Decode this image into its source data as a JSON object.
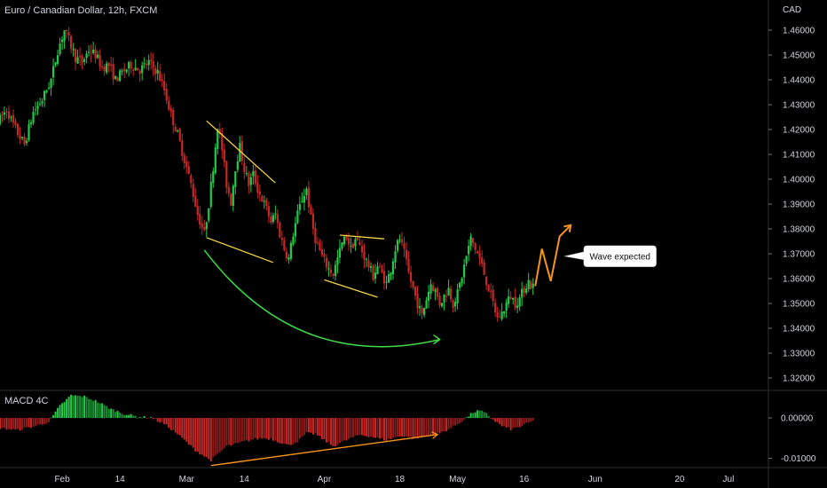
{
  "colors": {
    "background": "#000000",
    "up": "#26a69a",
    "up_bright": "#22c94a",
    "down": "#c62828",
    "pattern_line": "#f5d442",
    "arc_line": "#3ddc45",
    "forecast": "#f7931a",
    "text": "#d1d4dc",
    "grid": "#2a2a2a"
  },
  "chart_data": [
    {
      "type": "candlestick",
      "title": "Euro / Canadian Dollar, 12h, FXCM",
      "ylabel": "CAD",
      "ylim": [
        1.315,
        1.465
      ],
      "y_ticks": [
        "1.46000",
        "1.45000",
        "1.44000",
        "1.43000",
        "1.42000",
        "1.41000",
        "1.40000",
        "1.39000",
        "1.38000",
        "1.37000",
        "1.36000",
        "1.35000",
        "1.34000",
        "1.33000",
        "1.32000"
      ],
      "x_ticks": [
        "Feb",
        "14",
        "Mar",
        "14",
        "Apr",
        "18",
        "May",
        "16",
        "Jun",
        "20",
        "Jul"
      ],
      "x_tick_days": [
        32,
        45,
        60,
        73,
        91,
        108,
        121,
        136,
        152,
        171,
        182
      ],
      "xlim_days": [
        18,
        191
      ],
      "price_path": [
        [
          18.0,
          1.423
        ],
        [
          20.0,
          1.428
        ],
        [
          22.0,
          1.42
        ],
        [
          24.0,
          1.414
        ],
        [
          26.0,
          1.427
        ],
        [
          28.0,
          1.432
        ],
        [
          30.0,
          1.44
        ],
        [
          31.5,
          1.452
        ],
        [
          33.0,
          1.46
        ],
        [
          34.0,
          1.456
        ],
        [
          35.5,
          1.449
        ],
        [
          37.0,
          1.447
        ],
        [
          38.5,
          1.452
        ],
        [
          40.0,
          1.45
        ],
        [
          41.5,
          1.445
        ],
        [
          43.0,
          1.446
        ],
        [
          44.5,
          1.44
        ],
        [
          46.0,
          1.443
        ],
        [
          48.0,
          1.446
        ],
        [
          50.0,
          1.444
        ],
        [
          52.0,
          1.447
        ],
        [
          54.0,
          1.443
        ],
        [
          55.5,
          1.436
        ],
        [
          57.0,
          1.426
        ],
        [
          58.5,
          1.418
        ],
        [
          60.0,
          1.408
        ],
        [
          61.5,
          1.398
        ],
        [
          63.0,
          1.386
        ],
        [
          64.5,
          1.378
        ],
        [
          65.5,
          1.39
        ],
        [
          66.5,
          1.405
        ],
        [
          67.5,
          1.422
        ],
        [
          68.5,
          1.412
        ],
        [
          69.5,
          1.398
        ],
        [
          70.5,
          1.391
        ],
        [
          71.5,
          1.405
        ],
        [
          72.5,
          1.413
        ],
        [
          73.5,
          1.404
        ],
        [
          74.5,
          1.398
        ],
        [
          75.5,
          1.402
        ],
        [
          76.5,
          1.396
        ],
        [
          77.5,
          1.392
        ],
        [
          78.5,
          1.388
        ],
        [
          79.5,
          1.383
        ],
        [
          80.5,
          1.386
        ],
        [
          81.5,
          1.378
        ],
        [
          82.5,
          1.372
        ],
        [
          83.5,
          1.368
        ],
        [
          84.5,
          1.378
        ],
        [
          85.5,
          1.386
        ],
        [
          86.5,
          1.392
        ],
        [
          87.5,
          1.396
        ],
        [
          88.5,
          1.384
        ],
        [
          89.5,
          1.376
        ],
        [
          90.5,
          1.371
        ],
        [
          91.5,
          1.367
        ],
        [
          92.5,
          1.364
        ],
        [
          93.5,
          1.362
        ],
        [
          94.5,
          1.368
        ],
        [
          95.5,
          1.374
        ],
        [
          96.5,
          1.377
        ],
        [
          97.5,
          1.372
        ],
        [
          98.5,
          1.376
        ],
        [
          99.5,
          1.373
        ],
        [
          100.5,
          1.369
        ],
        [
          101.5,
          1.365
        ],
        [
          102.5,
          1.361
        ],
        [
          103.5,
          1.365
        ],
        [
          104.5,
          1.362
        ],
        [
          105.5,
          1.358
        ],
        [
          106.5,
          1.364
        ],
        [
          107.5,
          1.372
        ],
        [
          108.5,
          1.376
        ],
        [
          109.5,
          1.37
        ],
        [
          110.5,
          1.362
        ],
        [
          111.5,
          1.356
        ],
        [
          112.5,
          1.35
        ],
        [
          113.5,
          1.345
        ],
        [
          114.5,
          1.352
        ],
        [
          115.5,
          1.358
        ],
        [
          116.5,
          1.355
        ],
        [
          117.5,
          1.35
        ],
        [
          118.5,
          1.353
        ],
        [
          119.5,
          1.356
        ],
        [
          120.5,
          1.35
        ],
        [
          121.5,
          1.354
        ],
        [
          122.5,
          1.361
        ],
        [
          123.5,
          1.369
        ],
        [
          124.5,
          1.376
        ],
        [
          125.5,
          1.372
        ],
        [
          126.5,
          1.368
        ],
        [
          127.5,
          1.362
        ],
        [
          128.5,
          1.356
        ],
        [
          129.5,
          1.35
        ],
        [
          130.5,
          1.344
        ],
        [
          131.5,
          1.346
        ],
        [
          132.5,
          1.35
        ],
        [
          133.5,
          1.353
        ],
        [
          134.5,
          1.35
        ],
        [
          135.5,
          1.352
        ],
        [
          136.5,
          1.356
        ],
        [
          137.5,
          1.359
        ],
        [
          138.0,
          1.357
        ]
      ],
      "patterns": [
        {
          "name": "falling-wedge-1",
          "lines": [
            [
              [
                64.5,
                1.4235
              ],
              [
                80.0,
                1.3985
              ]
            ],
            [
              [
                64.5,
                1.3765
              ],
              [
                79.5,
                1.3665
              ]
            ]
          ]
        },
        {
          "name": "falling-wedge-2",
          "lines": [
            [
              [
                94.5,
                1.3775
              ],
              [
                104.5,
                1.376
              ]
            ],
            [
              [
                91.0,
                1.3595
              ],
              [
                103.0,
                1.3525
              ]
            ]
          ]
        }
      ],
      "arc": {
        "start": [
          64.0,
          1.3715
        ],
        "control": [
          85.0,
          1.322
        ],
        "end": [
          117.0,
          1.3355
        ]
      },
      "forecast_path": [
        [
          138.5,
          1.357
        ],
        [
          140.0,
          1.372
        ],
        [
          142.0,
          1.359
        ],
        [
          144.0,
          1.377
        ],
        [
          146.5,
          1.3815
        ]
      ],
      "annotation": {
        "text": "Wave expected",
        "anchor": [
          145.0,
          1.369
        ]
      }
    },
    {
      "type": "bar",
      "title": "MACD 4C",
      "ylim": [
        -0.0123,
        0.0066
      ],
      "y_ticks": [
        "0.00000",
        "-0.01000"
      ],
      "y_tick_values": [
        0.0,
        -0.01
      ],
      "histogram_path": [
        [
          18.0,
          -0.0025
        ],
        [
          22.0,
          -0.003
        ],
        [
          26.0,
          -0.002
        ],
        [
          29.0,
          -0.001
        ],
        [
          31.5,
          0.003
        ],
        [
          34.0,
          0.0056
        ],
        [
          37.0,
          0.0053
        ],
        [
          40.0,
          0.004
        ],
        [
          43.0,
          0.0022
        ],
        [
          46.0,
          0.001
        ],
        [
          49.0,
          0.0003
        ],
        [
          52.0,
          0.0001
        ],
        [
          55.0,
          -0.0015
        ],
        [
          58.0,
          -0.004
        ],
        [
          60.0,
          -0.006
        ],
        [
          62.0,
          -0.008
        ],
        [
          64.0,
          -0.0095
        ],
        [
          65.5,
          -0.0105
        ],
        [
          67.0,
          -0.009
        ],
        [
          69.0,
          -0.007
        ],
        [
          71.0,
          -0.0065
        ],
        [
          73.0,
          -0.0058
        ],
        [
          75.0,
          -0.0053
        ],
        [
          77.0,
          -0.005
        ],
        [
          79.0,
          -0.0052
        ],
        [
          81.0,
          -0.006
        ],
        [
          83.0,
          -0.0068
        ],
        [
          85.0,
          -0.0058
        ],
        [
          87.0,
          -0.0038
        ],
        [
          89.0,
          -0.004
        ],
        [
          91.0,
          -0.0055
        ],
        [
          93.0,
          -0.007
        ],
        [
          95.0,
          -0.006
        ],
        [
          97.0,
          -0.005
        ],
        [
          99.0,
          -0.0042
        ],
        [
          101.0,
          -0.0045
        ],
        [
          103.0,
          -0.005
        ],
        [
          105.0,
          -0.0055
        ],
        [
          107.0,
          -0.0048
        ],
        [
          109.0,
          -0.0044
        ],
        [
          111.0,
          -0.005
        ],
        [
          113.0,
          -0.0048
        ],
        [
          115.0,
          -0.0042
        ],
        [
          117.0,
          -0.0038
        ],
        [
          119.0,
          -0.0028
        ],
        [
          121.0,
          -0.0015
        ],
        [
          123.0,
          0.0
        ],
        [
          124.5,
          0.0014
        ],
        [
          126.0,
          0.0018
        ],
        [
          127.5,
          0.001
        ],
        [
          129.0,
          -0.0004
        ],
        [
          131.0,
          -0.002
        ],
        [
          133.0,
          -0.0028
        ],
        [
          135.0,
          -0.0022
        ],
        [
          137.0,
          -0.0012
        ],
        [
          138.0,
          -0.0008
        ]
      ],
      "divergence_line": [
        [
          65.5,
          -0.0118
        ],
        [
          116.5,
          -0.0041
        ]
      ]
    }
  ]
}
